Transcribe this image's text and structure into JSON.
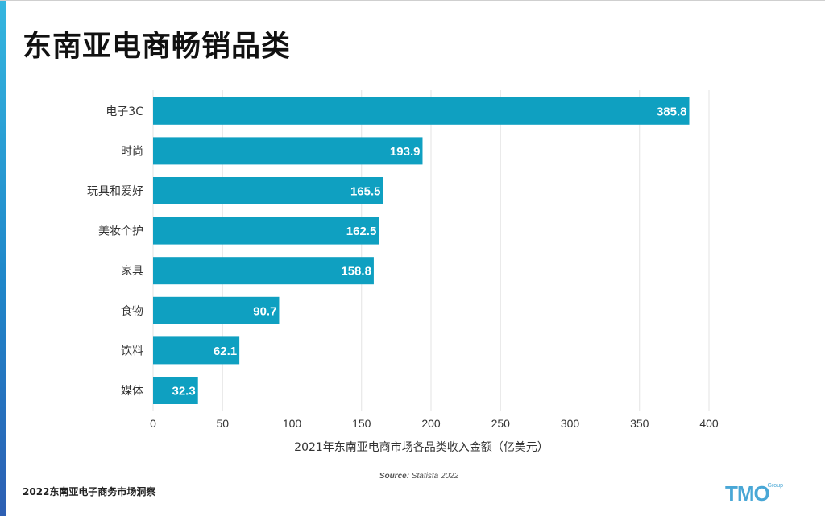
{
  "page": {
    "title": "东南亚电商畅销品类",
    "footer": "2022东南亚电子商务市场洞察",
    "source_label": "Source:",
    "source_value": " Statista 2022",
    "logo_text": "TMO",
    "logo_sub": "Group"
  },
  "colors": {
    "bar": "#0fa0c1",
    "grid": "#e3e3e3",
    "bar_label": "#ffffff",
    "axis_text": "#333333"
  },
  "chart_data": {
    "type": "bar",
    "orientation": "horizontal",
    "categories": [
      "电子3C",
      "时尚",
      "玩具和爱好",
      "美妆个护",
      "家具",
      "食物",
      "饮料",
      "媒体"
    ],
    "values": [
      385.8,
      193.9,
      165.5,
      162.5,
      158.8,
      90.7,
      62.1,
      32.3
    ],
    "value_labels": [
      "385.8",
      "193.9",
      "165.5",
      "162.5",
      "158.8",
      "90.7",
      "62.1",
      "32.3"
    ],
    "xlabel": "2021年东南亚电商市场各品类收入金额（亿美元）",
    "xlim": [
      0,
      400
    ],
    "xticks": [
      0,
      50,
      100,
      150,
      200,
      250,
      300,
      350,
      400
    ],
    "grid": true
  }
}
